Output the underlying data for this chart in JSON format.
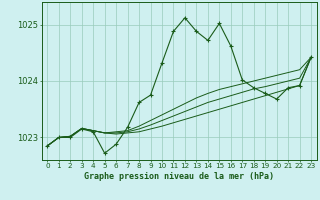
{
  "title": "Graphe pression niveau de la mer (hPa)",
  "bg_color": "#cff0f0",
  "grid_color": "#99ccbb",
  "line_color": "#1a5c1a",
  "yticks": [
    1023,
    1024,
    1025
  ],
  "ylim": [
    1022.6,
    1025.4
  ],
  "xlim": [
    -0.5,
    23.5
  ],
  "main_y": [
    1022.85,
    1023.0,
    1023.0,
    1023.15,
    1023.1,
    1022.72,
    1022.88,
    1023.18,
    1023.62,
    1023.75,
    1024.32,
    1024.88,
    1025.12,
    1024.88,
    1024.72,
    1025.02,
    1024.62,
    1024.02,
    1023.88,
    1023.78,
    1023.68,
    1023.88,
    1023.92,
    1024.42
  ],
  "line2_y": [
    1022.85,
    1023.0,
    1023.02,
    1023.16,
    1023.12,
    1023.08,
    1023.1,
    1023.12,
    1023.2,
    1023.3,
    1023.4,
    1023.5,
    1023.6,
    1023.7,
    1023.78,
    1023.85,
    1023.9,
    1023.95,
    1024.0,
    1024.05,
    1024.1,
    1024.15,
    1024.2,
    1024.42
  ],
  "line3_y": [
    1022.85,
    1023.0,
    1023.02,
    1023.16,
    1023.12,
    1023.08,
    1023.08,
    1023.1,
    1023.15,
    1023.22,
    1023.3,
    1023.38,
    1023.46,
    1023.54,
    1023.62,
    1023.68,
    1023.74,
    1023.8,
    1023.86,
    1023.9,
    1023.95,
    1024.0,
    1024.05,
    1024.42
  ],
  "line4_y": [
    1022.85,
    1023.0,
    1023.02,
    1023.16,
    1023.12,
    1023.08,
    1023.06,
    1023.08,
    1023.1,
    1023.15,
    1023.2,
    1023.26,
    1023.32,
    1023.38,
    1023.44,
    1023.5,
    1023.56,
    1023.62,
    1023.68,
    1023.74,
    1023.8,
    1023.86,
    1023.92,
    1024.42
  ],
  "x_labels": [
    "0",
    "1",
    "2",
    "3",
    "4",
    "5",
    "6",
    "7",
    "8",
    "9",
    "10",
    "11",
    "12",
    "13",
    "14",
    "15",
    "16",
    "17",
    "18",
    "19",
    "20",
    "21",
    "22",
    "23"
  ],
  "title_fontsize": 6.0,
  "tick_fontsize": 5.2,
  "ytick_fontsize": 6.0
}
